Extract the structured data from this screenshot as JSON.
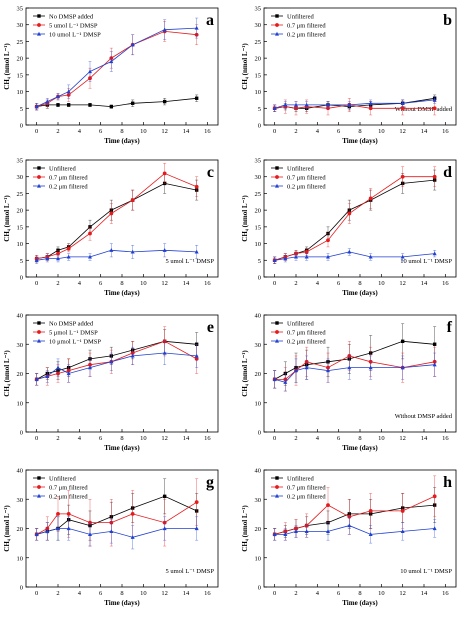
{
  "chart_data": [
    {
      "panel": "a",
      "type": "line",
      "ylabel": "CH₄ (nmol L⁻¹)",
      "xlabel": "Time (days)",
      "ylim": [
        0,
        35
      ],
      "yticks": [
        0,
        5,
        10,
        15,
        20,
        25,
        30,
        35
      ],
      "xlim": [
        -1,
        17
      ],
      "xticks": [
        0,
        2,
        4,
        6,
        8,
        10,
        12,
        14,
        16
      ],
      "annotation": "",
      "series": [
        {
          "name": "No DMSP added",
          "color": "#000000",
          "marker": "square",
          "x": [
            0,
            1,
            2,
            3,
            5,
            7,
            9,
            12,
            15
          ],
          "y": [
            5.5,
            6,
            6,
            6,
            6,
            5.5,
            6.5,
            7,
            8
          ],
          "err": [
            1,
            1,
            0.5,
            0.5,
            0.5,
            0.5,
            1,
            1,
            1
          ]
        },
        {
          "name": "5 umol L⁻¹ DMSP",
          "color": "#e41a1c",
          "marker": "circle",
          "x": [
            0,
            1,
            2,
            3,
            5,
            7,
            9,
            12,
            15
          ],
          "y": [
            5.5,
            6.5,
            8.5,
            9,
            14,
            20,
            24,
            28,
            27
          ],
          "err": [
            1,
            1,
            1,
            2,
            3,
            3,
            3,
            3,
            3
          ]
        },
        {
          "name": "10 umol L⁻¹ DMSP",
          "color": "#2040d0",
          "marker": "triangle",
          "x": [
            0,
            1,
            2,
            3,
            5,
            7,
            9,
            12,
            15
          ],
          "y": [
            5.5,
            7,
            8.5,
            10,
            16,
            19,
            24,
            28.5,
            29
          ],
          "err": [
            1,
            1,
            1,
            2,
            3,
            3,
            3,
            3,
            3
          ]
        }
      ]
    },
    {
      "panel": "b",
      "type": "line",
      "ylabel": "CH₄ (nmol L⁻¹)",
      "xlabel": "Time (days)",
      "ylim": [
        0,
        35
      ],
      "yticks": [
        0,
        5,
        10,
        15,
        20,
        25,
        30,
        35
      ],
      "xlim": [
        -1,
        17
      ],
      "xticks": [
        0,
        2,
        4,
        6,
        8,
        10,
        12,
        14,
        16
      ],
      "annotation": "Without DMSP added",
      "series": [
        {
          "name": "Unfiltered",
          "color": "#000000",
          "marker": "square",
          "x": [
            0,
            1,
            2,
            3,
            5,
            7,
            9,
            12,
            15
          ],
          "y": [
            5,
            5.5,
            5,
            5,
            6,
            5.5,
            6,
            6.5,
            8
          ],
          "err": [
            1,
            1,
            1,
            1,
            1,
            1,
            1,
            1,
            1
          ]
        },
        {
          "name": "0.7 μm filtered",
          "color": "#e41a1c",
          "marker": "circle",
          "x": [
            0,
            1,
            2,
            3,
            5,
            7,
            9,
            12,
            15
          ],
          "y": [
            5,
            5.5,
            5,
            5.5,
            5,
            6,
            5,
            5,
            5
          ],
          "err": [
            1,
            2,
            2,
            2,
            2,
            2,
            2,
            2,
            2
          ]
        },
        {
          "name": "0.2 μm filtered",
          "color": "#2040d0",
          "marker": "triangle",
          "x": [
            0,
            1,
            2,
            3,
            5,
            7,
            9,
            12,
            15
          ],
          "y": [
            5,
            6,
            6,
            6,
            6,
            6,
            6.5,
            6.5,
            7.5
          ],
          "err": [
            1,
            1,
            1,
            1,
            1,
            1,
            1,
            1,
            1
          ]
        }
      ]
    },
    {
      "panel": "c",
      "type": "line",
      "ylabel": "CH₄ (nmol L⁻¹)",
      "xlabel": "Time (days)",
      "ylim": [
        0,
        35
      ],
      "yticks": [
        0,
        5,
        10,
        15,
        20,
        25,
        30,
        35
      ],
      "xlim": [
        -1,
        17
      ],
      "xticks": [
        0,
        2,
        4,
        6,
        8,
        10,
        12,
        14,
        16
      ],
      "annotation": "5 umol L⁻¹ DMSP",
      "series": [
        {
          "name": "Unfiltered",
          "color": "#000000",
          "marker": "square",
          "x": [
            0,
            1,
            2,
            3,
            5,
            7,
            9,
            12,
            15
          ],
          "y": [
            5.5,
            6,
            8,
            9,
            15,
            20,
            23,
            28,
            26
          ],
          "err": [
            1,
            1,
            1,
            1,
            2,
            3,
            3,
            3,
            3
          ]
        },
        {
          "name": "0.7 μm filtered",
          "color": "#e41a1c",
          "marker": "circle",
          "x": [
            0,
            1,
            2,
            3,
            5,
            7,
            9,
            12,
            15
          ],
          "y": [
            5.5,
            6,
            7,
            8.5,
            13,
            19,
            23,
            31,
            27
          ],
          "err": [
            1,
            1,
            1,
            1,
            2,
            3,
            3,
            3,
            3
          ]
        },
        {
          "name": "0.2 μm filtered",
          "color": "#2040d0",
          "marker": "triangle",
          "x": [
            0,
            1,
            2,
            3,
            5,
            7,
            9,
            12,
            15
          ],
          "y": [
            5,
            5.5,
            5.5,
            6,
            6,
            8,
            7.5,
            8,
            7.5
          ],
          "err": [
            1,
            1,
            1,
            1,
            1,
            2,
            2,
            2,
            2
          ]
        }
      ]
    },
    {
      "panel": "d",
      "type": "line",
      "ylabel": "CH₄ (nmol L⁻¹)",
      "xlabel": "Time (days)",
      "ylim": [
        0,
        35
      ],
      "yticks": [
        0,
        5,
        10,
        15,
        20,
        25,
        30,
        35
      ],
      "xlim": [
        -1,
        17
      ],
      "xticks": [
        0,
        2,
        4,
        6,
        8,
        10,
        12,
        14,
        16
      ],
      "annotation": "10 umol L⁻¹ DMSP",
      "series": [
        {
          "name": "Unfiltered",
          "color": "#000000",
          "marker": "square",
          "x": [
            0,
            1,
            2,
            3,
            5,
            7,
            9,
            12,
            15
          ],
          "y": [
            5,
            6,
            7,
            8,
            13,
            20,
            23,
            28,
            29
          ],
          "err": [
            1,
            1,
            1,
            1,
            2,
            3,
            3,
            3,
            3
          ]
        },
        {
          "name": "0.7 μm filtered",
          "color": "#e41a1c",
          "marker": "circle",
          "x": [
            0,
            1,
            2,
            3,
            5,
            7,
            9,
            12,
            15
          ],
          "y": [
            5,
            6,
            7,
            7.5,
            11,
            19,
            23.5,
            30,
            30
          ],
          "err": [
            1,
            1,
            1,
            1,
            2,
            3,
            3,
            3,
            3
          ]
        },
        {
          "name": "0.2 μm filtered",
          "color": "#2040d0",
          "marker": "triangle",
          "x": [
            0,
            1,
            2,
            3,
            5,
            7,
            9,
            12,
            15
          ],
          "y": [
            5,
            5.5,
            6,
            6,
            6,
            7.5,
            6,
            6,
            7
          ],
          "err": [
            1,
            1,
            1,
            1,
            1,
            1,
            1,
            1,
            1
          ]
        }
      ]
    },
    {
      "panel": "e",
      "type": "line",
      "ylabel": "CH₄ (nmol L⁻¹)",
      "xlabel": "Time (days)",
      "ylim": [
        0,
        40
      ],
      "yticks": [
        0,
        10,
        20,
        30,
        40
      ],
      "xlim": [
        -1,
        17
      ],
      "xticks": [
        0,
        2,
        4,
        6,
        8,
        10,
        12,
        14,
        16
      ],
      "annotation": "",
      "series": [
        {
          "name": "No DMSP added",
          "color": "#000000",
          "marker": "square",
          "x": [
            0,
            1,
            2,
            3,
            5,
            7,
            9,
            12,
            15
          ],
          "y": [
            18,
            20,
            21,
            22,
            25,
            26,
            28,
            31,
            30
          ],
          "err": [
            2,
            2,
            3,
            3,
            3,
            3,
            3,
            4,
            4
          ]
        },
        {
          "name": "5 μmol L⁻¹ DMSP",
          "color": "#e41a1c",
          "marker": "circle",
          "x": [
            0,
            1,
            2,
            3,
            5,
            7,
            9,
            12,
            15
          ],
          "y": [
            18,
            19,
            20,
            21,
            23,
            24,
            27,
            31,
            25
          ],
          "err": [
            2,
            3,
            3,
            4,
            4,
            4,
            4,
            5,
            5
          ]
        },
        {
          "name": "10 μmol L⁻¹ DMSP",
          "color": "#2040d0",
          "marker": "triangle",
          "x": [
            0,
            1,
            2,
            3,
            5,
            7,
            9,
            12,
            15
          ],
          "y": [
            18,
            19,
            22,
            20,
            22,
            24,
            26,
            27,
            26
          ],
          "err": [
            2,
            2,
            3,
            3,
            3,
            3,
            3,
            4,
            4
          ]
        }
      ]
    },
    {
      "panel": "f",
      "type": "line",
      "ylabel": "CH₄ (nmol L⁻¹)",
      "xlabel": "Time (days)",
      "ylim": [
        0,
        40
      ],
      "yticks": [
        0,
        10,
        20,
        30,
        40
      ],
      "xlim": [
        -1,
        17
      ],
      "xticks": [
        0,
        2,
        4,
        6,
        8,
        10,
        12,
        14,
        16
      ],
      "annotation": "Without DMSP added",
      "series": [
        {
          "name": "Unfiltered",
          "color": "#000000",
          "marker": "square",
          "x": [
            0,
            1,
            2,
            3,
            5,
            7,
            9,
            12,
            15
          ],
          "y": [
            18,
            20,
            22,
            23,
            24,
            25,
            27,
            31,
            30
          ],
          "err": [
            3,
            4,
            5,
            5,
            5,
            5,
            6,
            6,
            6
          ]
        },
        {
          "name": "0.7 μm filtered",
          "color": "#e41a1c",
          "marker": "circle",
          "x": [
            0,
            1,
            2,
            3,
            5,
            7,
            9,
            12,
            15
          ],
          "y": [
            18,
            18,
            21,
            24,
            22,
            26,
            24,
            22,
            24
          ],
          "err": [
            3,
            4,
            5,
            5,
            5,
            5,
            5,
            5,
            5
          ]
        },
        {
          "name": "0.2 μm filtered",
          "color": "#2040d0",
          "marker": "triangle",
          "x": [
            0,
            1,
            2,
            3,
            5,
            7,
            9,
            12,
            15
          ],
          "y": [
            18,
            17,
            21,
            22,
            21,
            22,
            22,
            22,
            23
          ],
          "err": [
            3,
            3,
            4,
            4,
            4,
            4,
            4,
            4,
            4
          ]
        }
      ]
    },
    {
      "panel": "g",
      "type": "line",
      "ylabel": "CH₄ (nmol L⁻¹)",
      "xlabel": "Time (days)",
      "ylim": [
        0,
        40
      ],
      "yticks": [
        0,
        10,
        20,
        30,
        40
      ],
      "xlim": [
        -1,
        17
      ],
      "xticks": [
        0,
        2,
        4,
        6,
        8,
        10,
        12,
        14,
        16
      ],
      "annotation": "5 umol L⁻¹ DMSP",
      "series": [
        {
          "name": "Unfiltered",
          "color": "#000000",
          "marker": "square",
          "x": [
            0,
            1,
            2,
            3,
            5,
            7,
            9,
            12,
            15
          ],
          "y": [
            18,
            19,
            20,
            23,
            21,
            24,
            27,
            31,
            26
          ],
          "err": [
            2,
            3,
            4,
            5,
            5,
            5,
            5,
            6,
            6
          ]
        },
        {
          "name": "0.7 μm filtered",
          "color": "#e41a1c",
          "marker": "circle",
          "x": [
            0,
            1,
            2,
            3,
            5,
            7,
            9,
            12,
            15
          ],
          "y": [
            18,
            20,
            25,
            25,
            22,
            22,
            25,
            22,
            29
          ],
          "err": [
            2,
            4,
            6,
            8,
            8,
            8,
            8,
            8,
            8
          ]
        },
        {
          "name": "0.2 μm filtered",
          "color": "#2040d0",
          "marker": "triangle",
          "x": [
            0,
            1,
            2,
            3,
            5,
            7,
            9,
            12,
            15
          ],
          "y": [
            18,
            19,
            20,
            20,
            18,
            19,
            17,
            20,
            20
          ],
          "err": [
            2,
            3,
            4,
            4,
            4,
            4,
            4,
            4,
            4
          ]
        }
      ]
    },
    {
      "panel": "h",
      "type": "line",
      "ylabel": "CH₄ (nmol L⁻¹)",
      "xlabel": "Time (days)",
      "ylim": [
        0,
        40
      ],
      "yticks": [
        0,
        10,
        20,
        30,
        40
      ],
      "xlim": [
        -1,
        17
      ],
      "xticks": [
        0,
        2,
        4,
        6,
        8,
        10,
        12,
        14,
        16
      ],
      "annotation": "10 umol L⁻¹ DMSP",
      "series": [
        {
          "name": "Unfiltered",
          "color": "#000000",
          "marker": "square",
          "x": [
            0,
            1,
            2,
            3,
            5,
            7,
            9,
            12,
            15
          ],
          "y": [
            18,
            19,
            20,
            21,
            22,
            25,
            25,
            27,
            28
          ],
          "err": [
            2,
            2,
            3,
            3,
            4,
            5,
            5,
            5,
            6
          ]
        },
        {
          "name": "0.7 μm filtered",
          "color": "#e41a1c",
          "marker": "circle",
          "x": [
            0,
            1,
            2,
            3,
            5,
            7,
            9,
            12,
            15
          ],
          "y": [
            18,
            19,
            20,
            21,
            28,
            24,
            26,
            26,
            31
          ],
          "err": [
            2,
            3,
            3,
            4,
            6,
            6,
            6,
            6,
            7
          ]
        },
        {
          "name": "0.2 μm filtered",
          "color": "#2040d0",
          "marker": "triangle",
          "x": [
            0,
            1,
            2,
            3,
            5,
            7,
            9,
            12,
            15
          ],
          "y": [
            18,
            18,
            19,
            19,
            19,
            21,
            18,
            19,
            20
          ],
          "err": [
            2,
            2,
            2,
            2,
            3,
            3,
            3,
            3,
            3
          ]
        }
      ]
    }
  ]
}
